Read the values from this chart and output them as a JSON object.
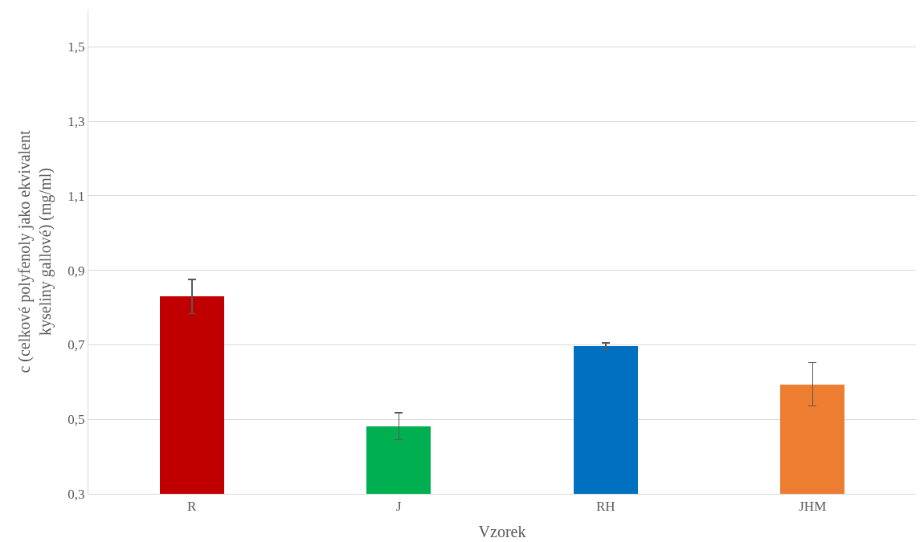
{
  "chart_data": {
    "type": "bar",
    "xlabel": "Vzorek",
    "ylabel": "c (celkové polyfenoly jako ekvivalent kyseliny gallové) (mg/ml)",
    "categories": [
      "R",
      "J",
      "RH",
      "JHM"
    ],
    "values": [
      0.83,
      0.482,
      0.696,
      0.594
    ],
    "colors": [
      "#c00000",
      "#00b050",
      "#0070c0",
      "#ed7d31"
    ],
    "errors": [
      0.046,
      0.036,
      0.009,
      0.058
    ],
    "ylim": [
      0.3,
      1.6
    ],
    "yticks": [
      {
        "value": 0.3,
        "label": "0,3"
      },
      {
        "value": 0.5,
        "label": "0,5"
      },
      {
        "value": 0.7,
        "label": "0,7"
      },
      {
        "value": 0.9,
        "label": "0,9"
      },
      {
        "value": 1.1,
        "label": "1,1"
      },
      {
        "value": 1.3,
        "label": "1,3"
      },
      {
        "value": 1.5,
        "label": "1,5"
      }
    ],
    "grid": "y"
  }
}
